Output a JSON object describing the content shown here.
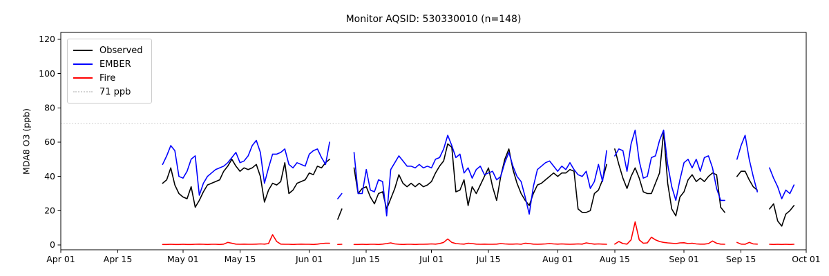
{
  "title": "Monitor AQSID: 530330010 (n=148)",
  "ylabel": "MDA8 O3 (ppb)",
  "colors": {
    "observed": "#000000",
    "ember": "#0000ff",
    "fire": "#ff0000",
    "threshold": "#d3d3d3",
    "axes": "#000000",
    "background": "#ffffff",
    "legend_border": "#cccccc"
  },
  "legend": {
    "position": "upper left",
    "items": [
      {
        "label": "Observed",
        "color": "#000000",
        "style": "solid"
      },
      {
        "label": "EMBER",
        "color": "#0000ff",
        "style": "solid"
      },
      {
        "label": "Fire",
        "color": "#ff0000",
        "style": "solid"
      },
      {
        "label": "71 ppb",
        "color": "#d3d3d3",
        "style": "dotted"
      }
    ]
  },
  "chart_data": {
    "type": "line",
    "title": "Monitor AQSID: 530330010 (n=148)",
    "xlabel": "",
    "ylabel": "MDA8 O3 (ppb)",
    "grid": false,
    "ylim": [
      -3,
      124
    ],
    "xlim_days": [
      0,
      183
    ],
    "x_axis_start_label": "Apr 01",
    "y_ticks": [
      0,
      20,
      40,
      60,
      80,
      100,
      120
    ],
    "x_ticks": [
      {
        "day": 0,
        "label": "Apr 01"
      },
      {
        "day": 14,
        "label": "Apr 15"
      },
      {
        "day": 30,
        "label": "May 01"
      },
      {
        "day": 44,
        "label": "May 15"
      },
      {
        "day": 61,
        "label": "Jun 01"
      },
      {
        "day": 75,
        "label": "Jun 15"
      },
      {
        "day": 91,
        "label": "Jul 01"
      },
      {
        "day": 105,
        "label": "Jul 15"
      },
      {
        "day": 122,
        "label": "Aug 01"
      },
      {
        "day": 136,
        "label": "Aug 15"
      },
      {
        "day": 153,
        "label": "Sep 01"
      },
      {
        "day": 167,
        "label": "Sep 15"
      },
      {
        "day": 183,
        "label": "Oct 01"
      }
    ],
    "threshold": {
      "value": 71,
      "label": "71 ppb",
      "color": "#d3d3d3",
      "style": "dotted"
    },
    "series": [
      {
        "name": "Observed",
        "color": "#000000",
        "segments": [
          {
            "start_day": 25,
            "start_label": "Apr 26",
            "values": [
              36,
              38,
              45,
              35,
              30,
              28,
              27,
              34,
              22,
              26,
              31,
              35,
              36,
              37,
              38,
              43,
              46,
              50,
              46,
              43,
              45,
              44,
              45,
              47,
              40,
              25,
              32,
              36,
              35,
              37,
              48,
              30,
              32,
              36,
              37,
              38,
              42,
              41,
              46,
              45,
              48,
              50
            ]
          },
          {
            "start_day": 68,
            "start_label": "Jun 08",
            "values": [
              15,
              21
            ]
          },
          {
            "start_day": 72,
            "start_label": "Jun 12",
            "values": [
              45,
              30,
              33,
              34,
              28,
              24,
              30,
              31,
              21,
              27,
              33,
              41,
              36,
              34,
              36,
              34,
              36,
              34,
              35,
              37,
              42,
              46,
              49,
              59,
              57,
              31,
              32,
              38,
              23,
              34,
              30,
              35,
              40,
              45,
              34,
              26,
              40,
              50,
              56,
              44,
              36,
              30,
              26,
              23,
              30,
              35,
              36,
              38,
              40,
              42,
              40,
              42,
              42,
              44,
              43,
              21,
              19,
              19,
              20,
              30,
              32,
              38,
              47
            ]
          },
          {
            "start_day": 136,
            "start_label": "Aug 15",
            "values": [
              56,
              47,
              39,
              33,
              40,
              45,
              39,
              31,
              30,
              30,
              36,
              42,
              66,
              36,
              21,
              17,
              28,
              31,
              38,
              41,
              37,
              39,
              37,
              40,
              42,
              41,
              22,
              19
            ]
          },
          {
            "start_day": 166,
            "start_label": "Sep 14",
            "values": [
              40,
              43,
              43,
              38,
              34,
              32
            ]
          },
          {
            "start_day": 174,
            "start_label": "Sep 22",
            "values": [
              21,
              24,
              14,
              11,
              18,
              20,
              23
            ]
          }
        ]
      },
      {
        "name": "EMBER",
        "color": "#0000ff",
        "segments": [
          {
            "start_day": 25,
            "start_label": "Apr 26",
            "values": [
              47,
              52,
              58,
              55,
              40,
              39,
              43,
              50,
              52,
              29,
              36,
              40,
              42,
              44,
              45,
              46,
              48,
              51,
              54,
              48,
              49,
              52,
              58,
              61,
              54,
              36,
              45,
              53,
              53,
              54,
              56,
              47,
              45,
              48,
              47,
              46,
              53,
              55,
              56,
              51,
              47,
              60
            ]
          },
          {
            "start_day": 68,
            "start_label": "Jun 08",
            "values": [
              27,
              30
            ]
          },
          {
            "start_day": 72,
            "start_label": "Jun 12",
            "values": [
              54,
              30,
              30,
              44,
              32,
              31,
              38,
              37,
              17,
              44,
              48,
              52,
              49,
              46,
              46,
              45,
              47,
              45,
              46,
              45,
              50,
              51,
              56,
              64,
              58,
              51,
              53,
              42,
              45,
              39,
              44,
              46,
              41,
              42,
              43,
              38,
              40,
              48,
              54,
              46,
              40,
              37,
              28,
              18,
              34,
              44,
              46,
              48,
              49,
              46,
              43,
              46,
              44,
              48,
              44,
              41,
              40,
              43,
              33,
              37,
              47,
              37,
              55
            ]
          },
          {
            "start_day": 136,
            "start_label": "Aug 15",
            "values": [
              52,
              56,
              55,
              43,
              59,
              67,
              49,
              39,
              40,
              51,
              52,
              61,
              67,
              47,
              34,
              26,
              38,
              48,
              50,
              45,
              50,
              43,
              51,
              52,
              45,
              33,
              26,
              26
            ]
          },
          {
            "start_day": 166,
            "start_label": "Sep 14",
            "values": [
              50,
              58,
              64,
              50,
              40,
              31
            ]
          },
          {
            "start_day": 174,
            "start_label": "Sep 22",
            "values": [
              45,
              39,
              34,
              27,
              32,
              30,
              35
            ]
          }
        ]
      },
      {
        "name": "Fire",
        "color": "#ff0000",
        "segments": [
          {
            "start_day": 25,
            "start_label": "Apr 26",
            "values": [
              0.3,
              0.3,
              0.4,
              0.3,
              0.3,
              0.4,
              0.3,
              0.3,
              0.4,
              0.5,
              0.4,
              0.3,
              0.4,
              0.4,
              0.3,
              0.5,
              1.5,
              1.0,
              0.5,
              0.4,
              0.5,
              0.4,
              0.4,
              0.5,
              0.6,
              0.5,
              0.8,
              6.0,
              2.0,
              0.5,
              0.4,
              0.4,
              0.3,
              0.4,
              0.5,
              0.4,
              0.4,
              0.3,
              0.5,
              0.8,
              1.0,
              1.0
            ]
          },
          {
            "start_day": 68,
            "start_label": "Jun 08",
            "values": [
              0.3,
              0.4
            ]
          },
          {
            "start_day": 72,
            "start_label": "Jun 12",
            "values": [
              0.3,
              0.3,
              0.4,
              0.3,
              0.4,
              0.4,
              0.3,
              0.5,
              0.8,
              1.2,
              0.6,
              0.4,
              0.3,
              0.4,
              0.4,
              0.3,
              0.4,
              0.4,
              0.5,
              0.6,
              0.5,
              0.8,
              1.5,
              3.5,
              1.5,
              0.8,
              0.6,
              0.5,
              1.0,
              0.8,
              0.5,
              0.4,
              0.5,
              0.4,
              0.4,
              0.5,
              0.8,
              0.6,
              0.5,
              0.5,
              0.6,
              0.4,
              1.0,
              0.8,
              0.5,
              0.4,
              0.5,
              0.6,
              0.8,
              0.6,
              0.5,
              0.6,
              0.5,
              0.4,
              0.5,
              0.6,
              0.5,
              1.2,
              0.8,
              0.5,
              0.6,
              0.5,
              0.4
            ]
          },
          {
            "start_day": 136,
            "start_label": "Aug 15",
            "values": [
              0.5,
              2.0,
              0.8,
              0.5,
              3.0,
              13.5,
              3.0,
              1.0,
              1.2,
              4.5,
              3.0,
              2.0,
              1.5,
              1.2,
              1.0,
              0.8,
              1.2,
              1.3,
              0.8,
              1.0,
              0.6,
              0.5,
              0.5,
              0.8,
              2.3,
              1.0,
              0.5,
              0.4
            ]
          },
          {
            "start_day": 166,
            "start_label": "Sep 14",
            "values": [
              1.5,
              0.5,
              0.4,
              1.5,
              0.6,
              0.5
            ]
          },
          {
            "start_day": 174,
            "start_label": "Sep 22",
            "values": [
              0.4,
              0.3,
              0.4,
              0.3,
              0.4,
              0.3,
              0.4
            ]
          }
        ]
      }
    ]
  }
}
